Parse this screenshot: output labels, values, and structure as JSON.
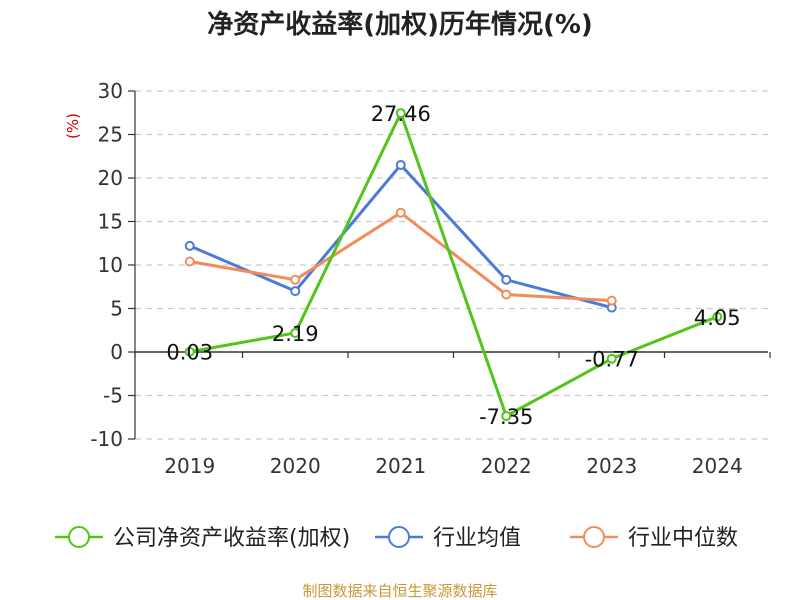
{
  "chart_data": {
    "type": "line",
    "title": "净资产收益率(加权)历年情况(%)",
    "ylabel": "(%)",
    "categories": [
      "2019",
      "2020",
      "2021",
      "2022",
      "2023",
      "2024"
    ],
    "yticks": [
      "30",
      "25",
      "20",
      "15",
      "10",
      "5",
      "0",
      "-5",
      "-10"
    ],
    "ylim": [
      -10,
      30
    ],
    "grid": true,
    "legend_position": "bottom",
    "series": [
      {
        "name": "公司净资产收益率(加权)",
        "color": "#52c41a",
        "values": [
          0.03,
          2.19,
          27.46,
          -7.35,
          -0.77,
          4.05
        ],
        "labels": [
          "0.03",
          "2.19",
          "27.46",
          "-7.35",
          "-0.77",
          "4.05"
        ]
      },
      {
        "name": "行业均值",
        "color": "#4a7bd9",
        "values": [
          12.2,
          7.0,
          21.5,
          8.3,
          5.1,
          null
        ]
      },
      {
        "name": "行业中位数",
        "color": "#f28c5a",
        "values": [
          10.4,
          8.3,
          16.0,
          6.6,
          5.9,
          null
        ]
      }
    ]
  },
  "source": "制图数据来自恒生聚源数据库",
  "colors": {
    "ylabel": "#cc0000",
    "source": "#c79a3a",
    "grid": "#cccccc",
    "axis": "#333333"
  }
}
